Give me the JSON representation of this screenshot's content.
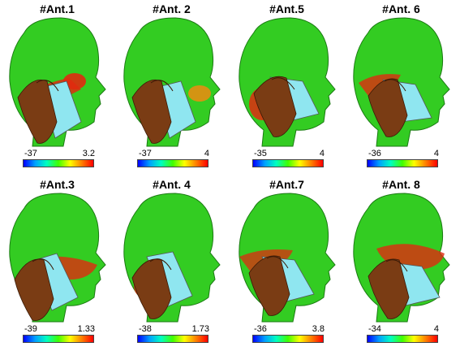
{
  "colors": {
    "head": "#33cc22",
    "hand": "#7a3c14",
    "phone": "#8fe6f0",
    "hot_red": "#e02a10",
    "hot_orange": "#f08a10"
  },
  "panels": [
    {
      "label": "#Ant.1",
      "min": "-37",
      "max": "3.2"
    },
    {
      "label": "#Ant. 2",
      "min": "-37",
      "max": "4"
    },
    {
      "label": "#Ant.5",
      "min": "-35",
      "max": "4"
    },
    {
      "label": "#Ant. 6",
      "min": "-36",
      "max": "4"
    },
    {
      "label": "#Ant.3",
      "min": "-39",
      "max": "1.33"
    },
    {
      "label": "#Ant. 4",
      "min": "-38",
      "max": "1.73"
    },
    {
      "label": "#Ant.7",
      "min": "-36",
      "max": "3.8"
    },
    {
      "label": "#Ant. 8",
      "min": "-34",
      "max": "4"
    }
  ]
}
